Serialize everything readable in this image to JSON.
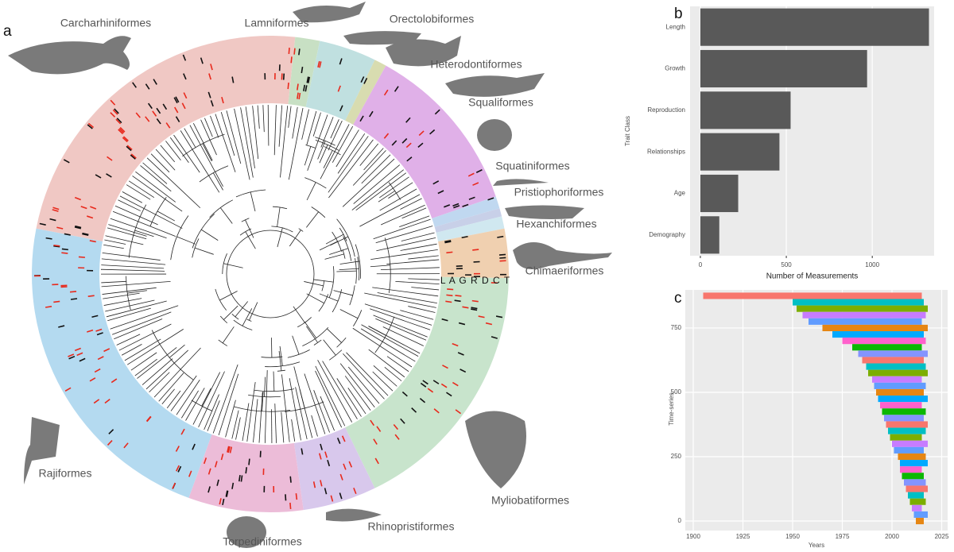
{
  "tree": {
    "panel_label": "a",
    "ring_header": "L A G R D C T",
    "clades": [
      "Carcharhiniformes",
      "Lamniformes",
      "Orectolobiformes",
      "Heterodontiformes",
      "Squaliformes",
      "Squatiniformes",
      "Pristiophoriformes",
      "Hexanchiformes",
      "Chimaeriformes",
      "Myliobatiformes",
      "Rhinopristiformes",
      "Torpediniformes",
      "Rajiformes"
    ]
  },
  "chart_data": [
    {
      "type": "hbar",
      "panel_label": "b",
      "x_label": "Number of Measurements",
      "y_label": "Trait Class",
      "categories": [
        "Length",
        "Growth",
        "Reproduction",
        "Relationships",
        "Age",
        "Demography"
      ],
      "values": [
        1330,
        970,
        525,
        460,
        220,
        110
      ],
      "color": "#595959",
      "xlim": [
        -60,
        1360
      ],
      "xticks": [
        0,
        500,
        1000
      ],
      "grid": true
    },
    {
      "type": "range",
      "panel_label": "c",
      "x_label": "Years",
      "y_label": "Time-series",
      "y": [
        875,
        850,
        825,
        800,
        775,
        750,
        725,
        700,
        675,
        650,
        625,
        600,
        575,
        550,
        525,
        500,
        475,
        450,
        425,
        400,
        375,
        350,
        325,
        300,
        275,
        250,
        225,
        200,
        175,
        150,
        125,
        100,
        75,
        50,
        25,
        0
      ],
      "start": [
        1905,
        1950,
        1952,
        1955,
        1958,
        1965,
        1970,
        1975,
        1980,
        1983,
        1985,
        1987,
        1988,
        1990,
        1991,
        1992,
        1993,
        1994,
        1995,
        1996,
        1997,
        1998,
        1999,
        2000,
        2001,
        2003,
        2004,
        2004,
        2005,
        2006,
        2007,
        2008,
        2009,
        2010,
        2011,
        2012
      ],
      "end": [
        2015,
        2016,
        2018,
        2017,
        2015,
        2018,
        2016,
        2017,
        2015,
        2018,
        2016,
        2017,
        2018,
        2015,
        2017,
        2016,
        2018,
        2015,
        2017,
        2016,
        2018,
        2017,
        2015,
        2018,
        2016,
        2017,
        2018,
        2015,
        2016,
        2017,
        2018,
        2016,
        2017,
        2015,
        2018,
        2016
      ],
      "colors": [
        "#f8766d",
        "#00bfc4",
        "#7cae00",
        "#c77cff",
        "#619cff",
        "#e68613",
        "#00a9ff",
        "#ff61cc",
        "#0cb702",
        "#8494ff"
      ],
      "xlim": [
        1896,
        2028
      ],
      "ylim": [
        -37,
        898
      ],
      "xticks": [
        1900,
        1925,
        1950,
        1975,
        2000,
        2025
      ],
      "yticks": [
        0,
        250,
        500,
        750
      ],
      "grid": true
    }
  ]
}
